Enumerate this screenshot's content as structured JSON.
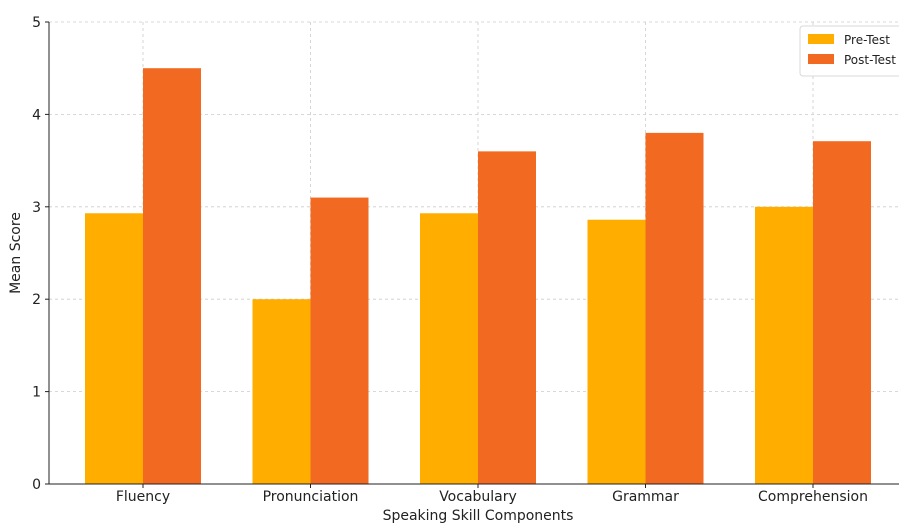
{
  "chart_data": {
    "type": "bar",
    "title": "",
    "xlabel": "Speaking Skill Components",
    "ylabel": "Mean Score",
    "categories": [
      "Fluency",
      "Pronunciation",
      "Vocabulary",
      "Grammar",
      "Comprehension"
    ],
    "series": [
      {
        "name": "Pre-Test",
        "values": [
          2.93,
          2.0,
          2.93,
          2.86,
          3.0
        ],
        "color": "#FFAE00"
      },
      {
        "name": "Post-Test",
        "values": [
          4.5,
          3.1,
          3.6,
          3.8,
          3.71
        ],
        "color": "#F26A21"
      }
    ],
    "ylim": [
      0,
      5
    ],
    "yticks": [
      0,
      1,
      2,
      3,
      4,
      5
    ],
    "grid": true,
    "legend_position": "top-right"
  }
}
